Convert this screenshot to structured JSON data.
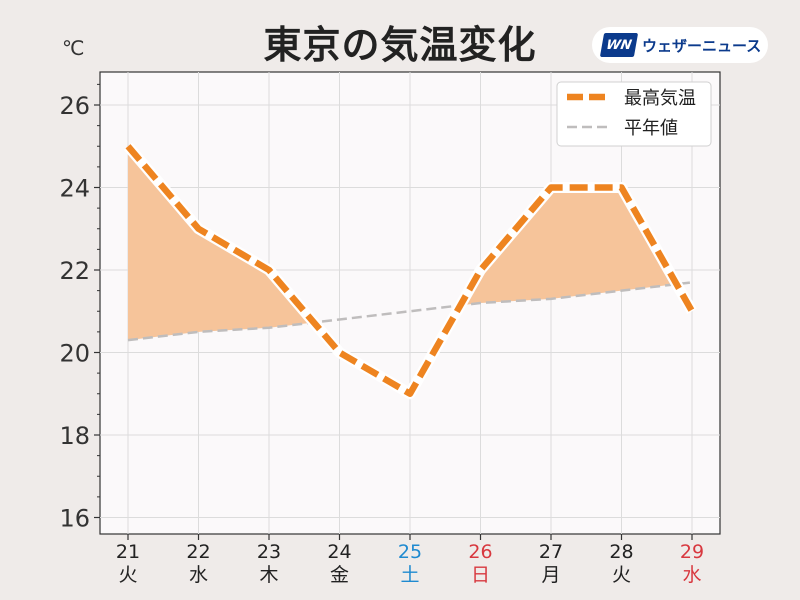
{
  "title": "東京の気温変化",
  "unit_label": "℃",
  "logo": {
    "mark": "WN",
    "text": "ウェザーニュース"
  },
  "colors": {
    "max_temp_line": "#ee8420",
    "normal_line": "#bfbdbd",
    "fill": "#f6c49a",
    "saturday": "#1f8ad0",
    "holiday": "#d8383f",
    "weekday": "#222222"
  },
  "chart_data": {
    "type": "line",
    "categories": [
      "21",
      "22",
      "23",
      "24",
      "25",
      "26",
      "27",
      "28",
      "29"
    ],
    "weekdays": [
      "火",
      "水",
      "木",
      "金",
      "土",
      "日",
      "月",
      "火",
      "水"
    ],
    "day_types": [
      "weekday",
      "weekday",
      "weekday",
      "weekday",
      "saturday",
      "holiday",
      "weekday",
      "weekday",
      "holiday"
    ],
    "series": [
      {
        "name": "最高気温",
        "values": [
          25,
          23,
          22,
          20,
          19,
          22,
          24,
          24,
          21
        ]
      },
      {
        "name": "平年値",
        "values": [
          20.3,
          20.5,
          20.6,
          20.8,
          21.0,
          21.2,
          21.3,
          21.5,
          21.7
        ]
      }
    ],
    "ylim": [
      15.6,
      26.8
    ],
    "yticks": [
      16,
      18,
      20,
      22,
      24,
      26
    ],
    "grid": true,
    "legend_position": "top-right"
  }
}
